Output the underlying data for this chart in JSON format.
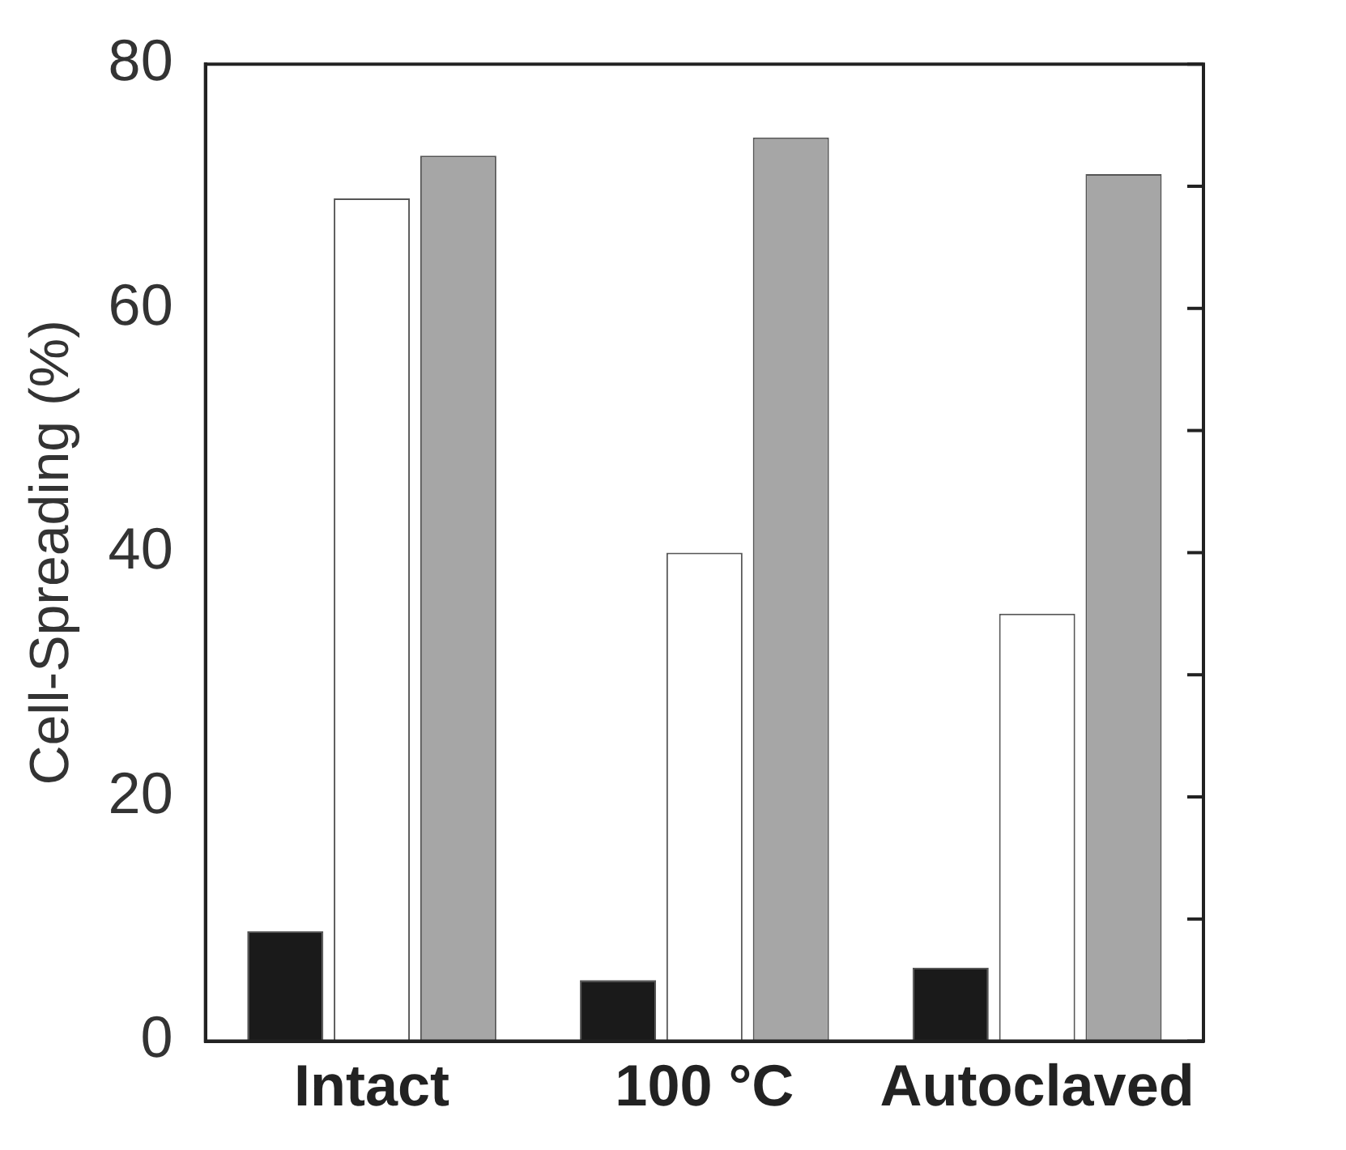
{
  "chart_data": {
    "type": "bar",
    "ylabel": "Cell-Spreading (%)",
    "categories": [
      "Intact",
      "100 °C",
      "Autoclaved"
    ],
    "series": [
      {
        "color": "#1a1a1a",
        "values": [
          9,
          5,
          6
        ]
      },
      {
        "color": "#ffffff",
        "values": [
          69,
          40,
          35
        ]
      },
      {
        "color": "#a6a6a6",
        "values": [
          72.5,
          74,
          71
        ]
      }
    ],
    "ylim": [
      0,
      80
    ],
    "yticks": [
      0,
      {
        "value": 10,
        "label": null
      },
      20,
      {
        "value": 30,
        "label": null
      },
      40,
      {
        "value": 50,
        "label": null
      },
      60,
      {
        "value": 70,
        "label": null
      },
      80
    ],
    "grid": false,
    "legend": false
  }
}
